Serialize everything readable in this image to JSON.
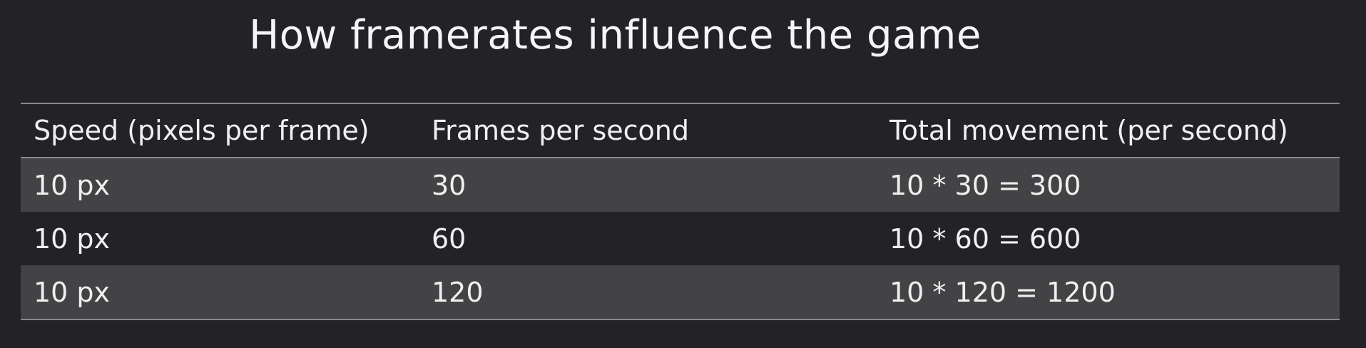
{
  "title": "How framerates influence the game",
  "table": {
    "headers": [
      "Speed (pixels per frame)",
      "Frames per second",
      "Total movement (per second)"
    ],
    "rows": [
      [
        "10 px",
        "30",
        "10 * 30 = 300"
      ],
      [
        "10 px",
        "60",
        "10 * 60 = 600"
      ],
      [
        "10 px",
        "120",
        "10 * 120 = 1200"
      ]
    ]
  },
  "colors": {
    "background": "#232227",
    "row_alt": "#434245",
    "rule": "#8a8a8c",
    "text": "#f0f0f0"
  }
}
